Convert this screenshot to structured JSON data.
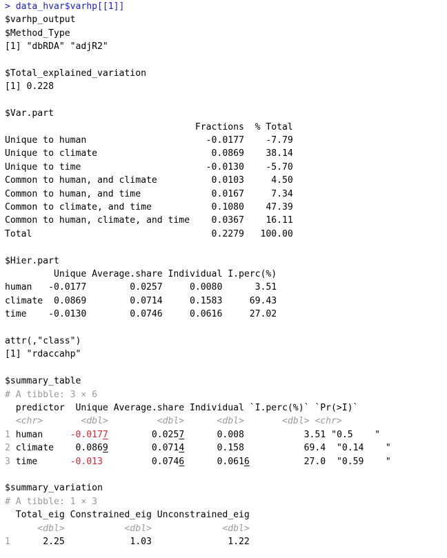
{
  "console": {
    "prompt": "> ",
    "command": "data_hvar$varhp[[1]]",
    "lines": [
      "$varhp_output",
      "$Method_Type",
      "[1] \"dbRDA\" \"adjR2\"",
      "",
      "$Total_explained_variation",
      "[1] 0.228",
      "",
      "$Var.part",
      "                                   Fractions  % Total",
      "Unique to human                      -0.0177    -7.79",
      "Unique to climate                     0.0869    38.14",
      "Unique to time                       -0.0130    -5.70",
      "Common to human, and climate          0.0103     4.50",
      "Common to human, and time             0.0167     7.34",
      "Common to climate, and time           0.1080    47.39",
      "Common to human, climate, and time    0.0367    16.11",
      "Total                                 0.2279   100.00",
      "",
      "$Hier.part",
      "         Unique Average.share Individual I.perc(%)",
      "human   -0.0177        0.0257     0.0080      3.51",
      "climate  0.0869        0.0714     0.1583     69.43",
      "time    -0.0130        0.0746     0.0616     27.02",
      "",
      "attr(,\"class\")",
      "[1] \"rdaccahp\"",
      "",
      "$summary_table"
    ],
    "summary_table": {
      "header_comment": "# A tibble: 3 × 6",
      "columns": "  predictor  Unique Average.share Individual `I.perc(%)` `Pr(>I)`",
      "types": "  <chr>       <dbl>         <dbl>      <dbl>       <dbl> <chr>",
      "rows": [
        {
          "num": "1",
          "name": " human   ",
          "unique_neg": "  -0.017",
          "unique_u": "7",
          "sp1": "        ",
          "share": "0.025",
          "share_u": "7",
          "sp2": "      ",
          "indiv": "0.008",
          "indiv_u": "",
          "rest": "           3.51 \"0.5    \""
        },
        {
          "num": "2",
          "name": " climate ",
          "unique_neg": "",
          "unique_plain": "   0.086",
          "unique_u": "9",
          "sp1": "        ",
          "share": "0.071",
          "share_u": "4",
          "sp2": "      ",
          "indiv": "0.158",
          "indiv_u": "",
          "rest": "           69.4  \"0.14    \""
        },
        {
          "num": "3",
          "name": " time    ",
          "unique_neg": "  -0.013",
          "unique_u": "",
          "sp1": "         ",
          "share": "0.074",
          "share_u": "6",
          "sp2": "      ",
          "indiv": "0.061",
          "indiv_u": "6",
          "rest": "          27.0  \"0.59    \""
        }
      ]
    },
    "summary_variation": {
      "title": "$summary_variation",
      "header_comment": "# A tibble: 1 × 3",
      "columns": "  Total_eig Constrained_eig Unconstrained_eig",
      "types": "      <dbl>           <dbl>             <dbl>",
      "row_num": "1",
      "row_values": "      2.25            1.03              1.22"
    }
  }
}
